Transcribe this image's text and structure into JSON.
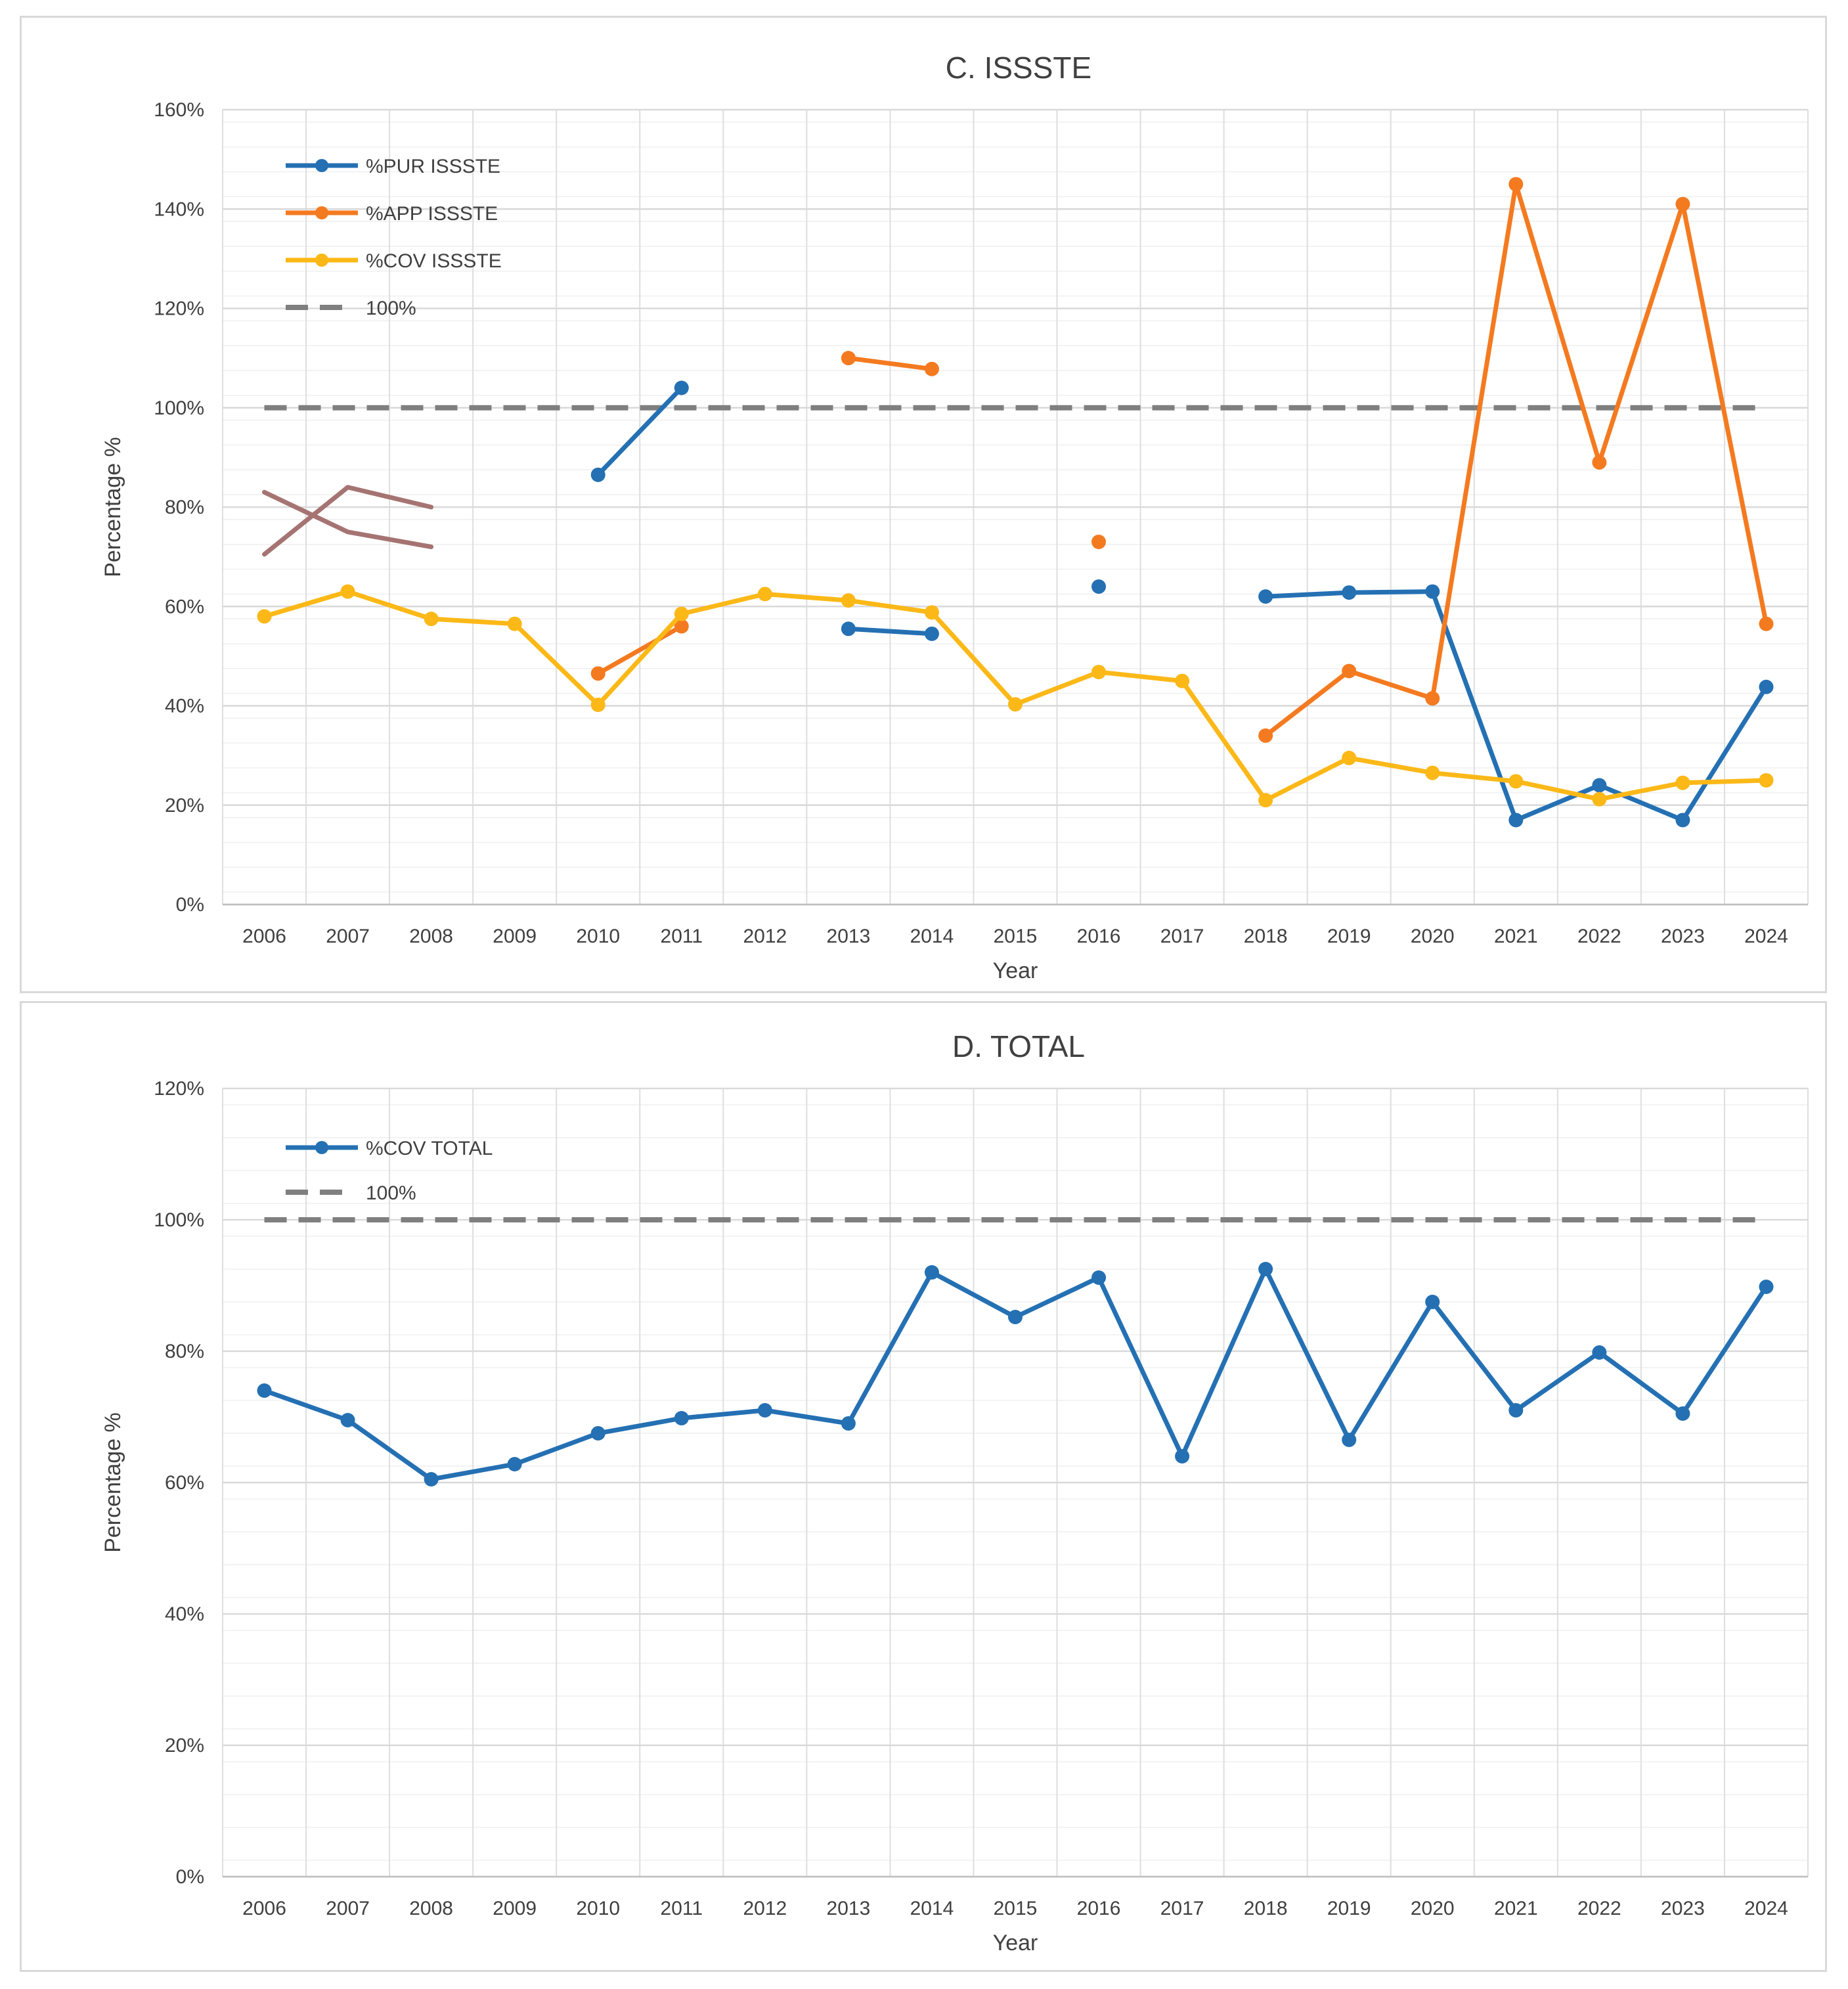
{
  "chart_data": [
    {
      "type": "line",
      "title": "C. ISSSTE",
      "xlabel": "Year",
      "ylabel": "Percentage %",
      "ylim": [
        0,
        160
      ],
      "yticks": [
        0,
        20,
        40,
        60,
        80,
        100,
        120,
        140,
        160
      ],
      "ytick_labels": [
        "0%",
        "20%",
        "40%",
        "60%",
        "80%",
        "100%",
        "120%",
        "140%",
        "160%"
      ],
      "categories": [
        "2006",
        "2007",
        "2008",
        "2009",
        "2010",
        "2011",
        "2012",
        "2013",
        "2014",
        "2015",
        "2016",
        "2017",
        "2018",
        "2019",
        "2020",
        "2021",
        "2022",
        "2023",
        "2024"
      ],
      "legend_position": "top-left",
      "series": [
        {
          "name": "%PUR ISSSTE",
          "color": "#2470b3",
          "dashed": false,
          "markers": true,
          "values": [
            null,
            null,
            null,
            null,
            86.5,
            104,
            null,
            55.5,
            54.5,
            null,
            64,
            null,
            62,
            62.8,
            63,
            17,
            24,
            17,
            43.8
          ]
        },
        {
          "name": "%APP ISSSTE",
          "color": "#f47a20",
          "dashed": false,
          "markers": true,
          "values": [
            null,
            null,
            null,
            null,
            46.5,
            56,
            null,
            110,
            107.8,
            null,
            73,
            null,
            34,
            47,
            41.5,
            145,
            89,
            141,
            56.5
          ]
        },
        {
          "name": "%COV ISSSTE",
          "color": "#fbb817",
          "dashed": false,
          "markers": true,
          "values": [
            58,
            63,
            57.5,
            56.5,
            40.2,
            58.5,
            62.5,
            61.2,
            58.8,
            40.3,
            46.8,
            45,
            21,
            29.5,
            26.5,
            24.8,
            21.2,
            24.5,
            25
          ]
        },
        {
          "name": "100%",
          "color": "#7f7f7f",
          "dashed": true,
          "markers": false,
          "values": [
            100,
            100,
            100,
            100,
            100,
            100,
            100,
            100,
            100,
            100,
            100,
            100,
            100,
            100,
            100,
            100,
            100,
            100,
            100
          ]
        }
      ],
      "unlabeled_series": [
        {
          "color": "#a57472",
          "values": [
            83,
            75,
            72
          ]
        },
        {
          "color": "#a57472",
          "values": [
            70.5,
            84,
            80
          ]
        }
      ]
    },
    {
      "type": "line",
      "title": "D. TOTAL",
      "xlabel": "Year",
      "ylabel": "Percentage %",
      "ylim": [
        0,
        120
      ],
      "yticks": [
        0,
        20,
        40,
        60,
        80,
        100,
        120
      ],
      "ytick_labels": [
        "0%",
        "20%",
        "40%",
        "60%",
        "80%",
        "100%",
        "120%"
      ],
      "categories": [
        "2006",
        "2007",
        "2008",
        "2009",
        "2010",
        "2011",
        "2012",
        "2013",
        "2014",
        "2015",
        "2016",
        "2017",
        "2018",
        "2019",
        "2020",
        "2021",
        "2022",
        "2023",
        "2024"
      ],
      "legend_position": "top-left",
      "series": [
        {
          "name": "%COV TOTAL",
          "color": "#2470b3",
          "dashed": false,
          "markers": true,
          "values": [
            74,
            69.5,
            60.5,
            62.8,
            67.5,
            69.8,
            71,
            69,
            92,
            85.2,
            91.2,
            64,
            92.5,
            66.5,
            87.5,
            71,
            79.8,
            70.5,
            89.8
          ]
        },
        {
          "name": "100%",
          "color": "#7f7f7f",
          "dashed": true,
          "markers": false,
          "values": [
            100,
            100,
            100,
            100,
            100,
            100,
            100,
            100,
            100,
            100,
            100,
            100,
            100,
            100,
            100,
            100,
            100,
            100,
            100
          ]
        }
      ]
    }
  ]
}
